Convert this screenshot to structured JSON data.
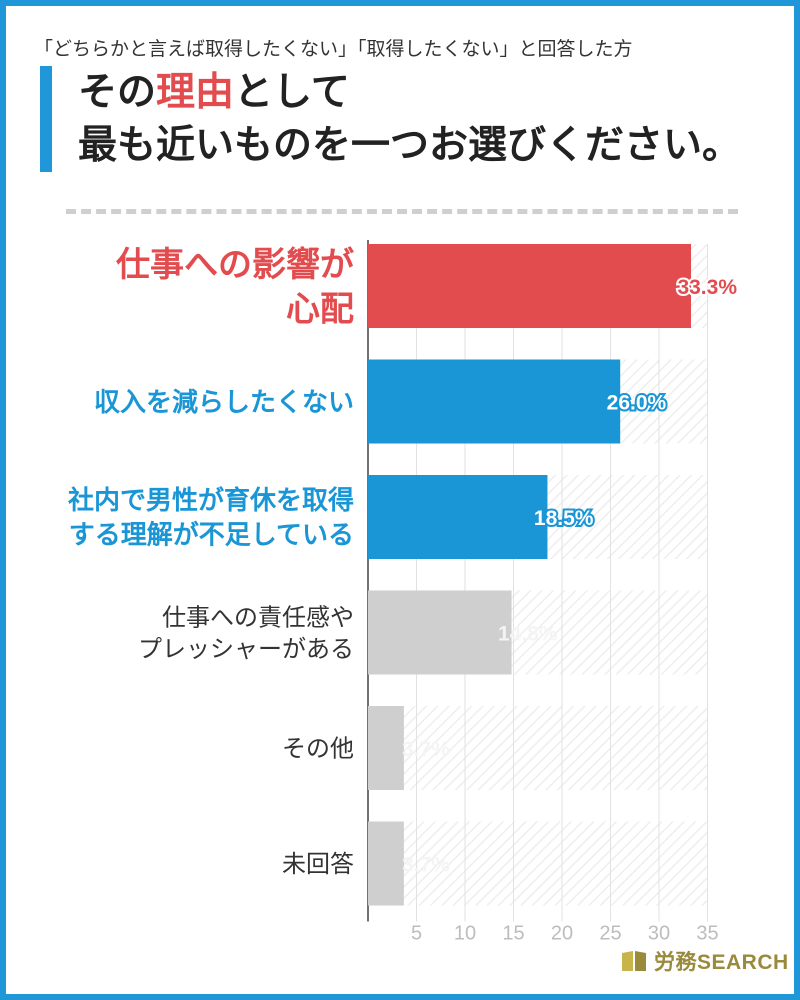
{
  "header": {
    "subtitle": "「どちらかと言えば取得したくない」「取得したくない」と回答した方",
    "title_line1_pre": "その",
    "title_line1_accent": "理由",
    "title_line1_post": "として",
    "title_line2": "最も近いものを一つお選びください。"
  },
  "colors": {
    "frame": "#1f97d8",
    "red": "#e24c4f",
    "blue": "#1a96d6",
    "gray": "#cfcfcf",
    "gray_text": "#333333",
    "brand": "#9a8a3c"
  },
  "brand": {
    "name": "労務SEARCH",
    "icon": "book-logo-icon"
  },
  "chart_data": {
    "type": "bar",
    "orientation": "horizontal",
    "categories": [
      "仕事への影響が\n心配",
      "収入を減らしたくない",
      "社内で男性が育休を取得\nする理解が不足している",
      "仕事への責任感や\nプレッシャーがある",
      "その他",
      "未回答"
    ],
    "values": [
      33.3,
      26.0,
      18.5,
      14.8,
      3.7,
      3.7
    ],
    "value_labels": [
      "33.3%",
      "26.0%",
      "18.5%",
      "14.8%",
      "3.7%",
      "3.7%"
    ],
    "bar_colors": [
      "red",
      "blue",
      "blue",
      "gray",
      "gray",
      "gray"
    ],
    "x_ticks": [
      5,
      10,
      15,
      20,
      25,
      30,
      35
    ],
    "xlim": [
      0,
      35
    ],
    "grid": true,
    "title": "",
    "xlabel": "",
    "ylabel": ""
  }
}
